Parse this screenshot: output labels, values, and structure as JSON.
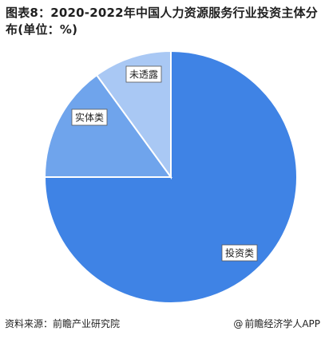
{
  "title": "图表8：2020-2022年中国人力资源服务行业投资主体分布(单位：%)",
  "footer": {
    "source": "资料来源：前瞻产业研究院",
    "brand": "前瞻经济学人APP",
    "brand_icon": "at-icon"
  },
  "chart_data": {
    "type": "pie",
    "title": "图表8：2020-2022年中国人力资源服务行业投资主体分布(单位：%)",
    "slices": [
      {
        "label": "投资类",
        "value": 75,
        "color": "#3f83e5"
      },
      {
        "label": "实体类",
        "value": 15,
        "color": "#6fa4ec"
      },
      {
        "label": "未透露",
        "value": 10,
        "color": "#a9c8f4"
      }
    ]
  }
}
